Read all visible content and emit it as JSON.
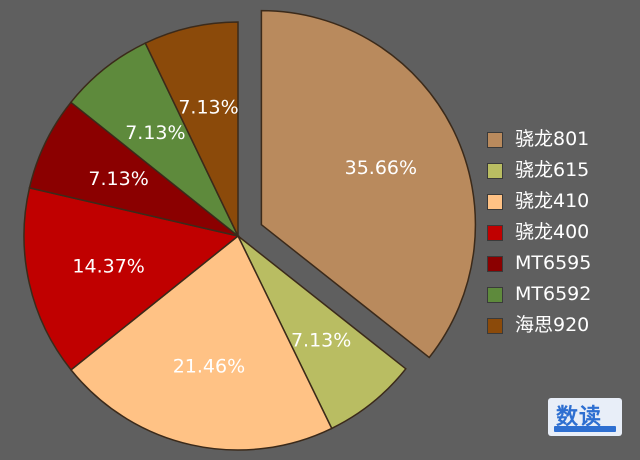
{
  "chart_data": {
    "type": "pie",
    "categories": [
      "骁龙801",
      "骁龙615",
      "骁龙410",
      "骁龙400",
      "MT6595",
      "MT6592",
      "海思920"
    ],
    "values": [
      35.66,
      7.13,
      21.46,
      14.37,
      7.13,
      7.13,
      7.13
    ],
    "labels": [
      "35.66%",
      "7.13%",
      "21.46%",
      "14.37%",
      "7.13%",
      "7.13%",
      "7.13%"
    ],
    "colors": [
      "#b98a5d",
      "#b9bd62",
      "#ffc285",
      "#c00000",
      "#8b0000",
      "#5e8a3c",
      "#8b4a0a"
    ],
    "exploded": [
      true,
      false,
      false,
      false,
      false,
      false,
      false
    ],
    "legend_position": "right"
  },
  "watermark": {
    "text": "数读"
  }
}
